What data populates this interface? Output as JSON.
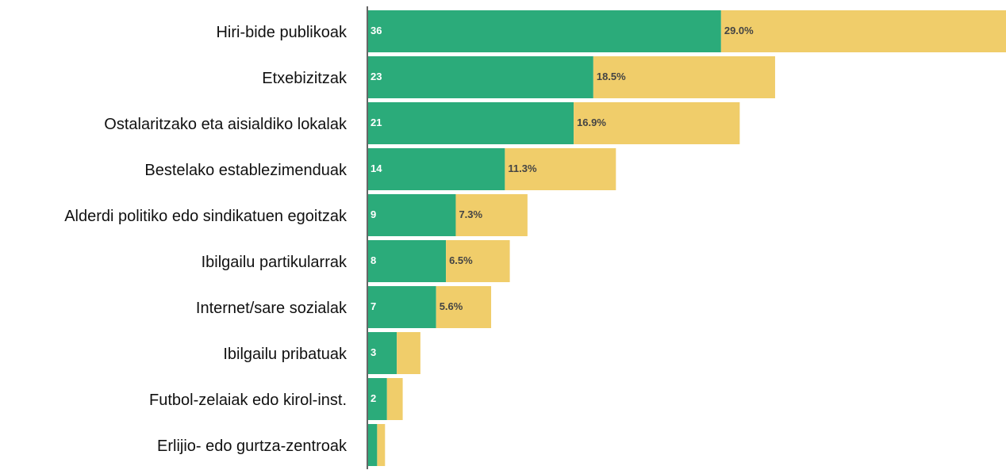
{
  "chart_data": {
    "type": "stacked-bar-horizontal",
    "categories": [
      "Hiri-bide publikoak",
      "Etxebizitzak",
      "Ostalaritzako eta aisialdiko lokalak",
      "Bestelako establezimenduak",
      "Alderdi politiko edo sindikatuen egoitzak",
      "Ibilgailu partikularrak",
      "Internet/sare sozialak",
      "Ibilgailu pribatuak",
      "Futbol-zelaiak edo kirol-inst.",
      "Erlijio- edo gurtza-zentroak"
    ],
    "series": [
      {
        "color": "#2bab7a",
        "values": [
          36,
          23,
          21,
          14,
          9,
          8,
          7,
          3,
          2,
          1
        ],
        "value_labels": [
          "36",
          "23",
          "21",
          "14",
          "9",
          "8",
          "7",
          "3",
          "2",
          null
        ]
      },
      {
        "color": "#f0cd6a",
        "values": [
          29.0,
          18.5,
          16.9,
          11.3,
          7.3,
          6.5,
          5.6,
          2.4,
          1.6,
          0.8
        ],
        "value_labels": [
          "29.0%",
          "18.5%",
          "16.9%",
          "11.3%",
          "7.3%",
          "6.5%",
          "5.6%",
          null,
          null,
          null
        ]
      }
    ],
    "xlim": [
      0,
      65
    ]
  }
}
